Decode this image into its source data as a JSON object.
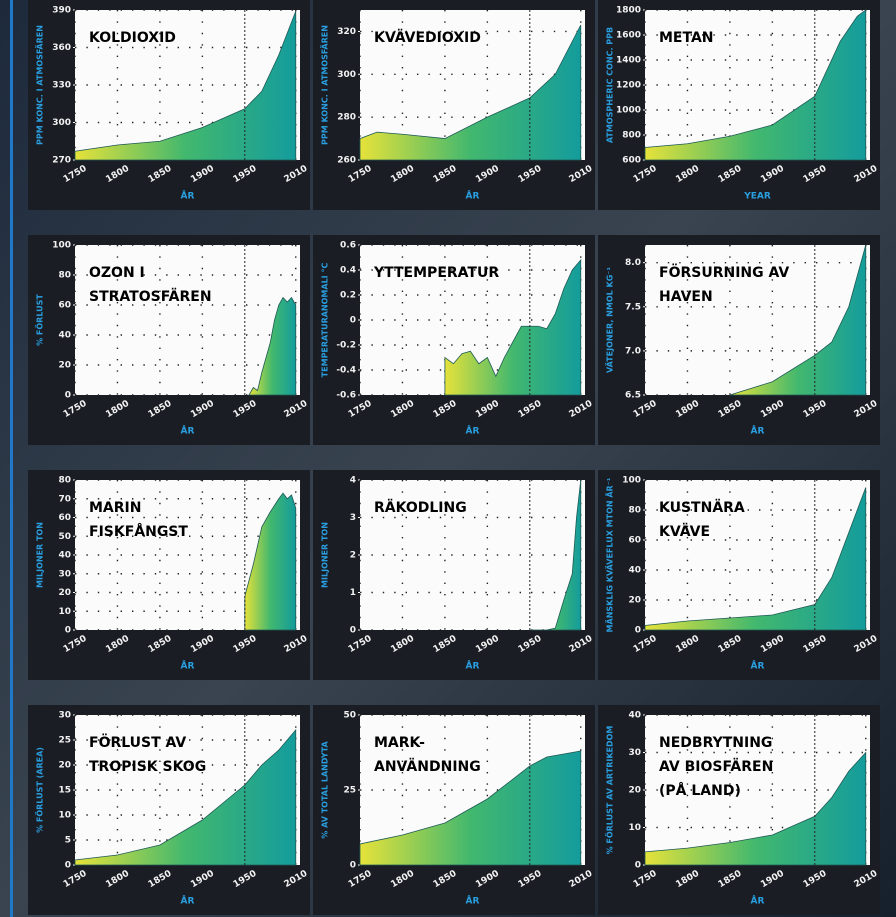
{
  "chart_data": [
    {
      "type": "area",
      "title": [
        "KOLDIOXID"
      ],
      "ylabel": "PPM KONC. I ATMOSFÄREN",
      "xlabel": "ÅR",
      "x": [
        1750,
        1800,
        1850,
        1900,
        1950,
        1970,
        1990,
        2010
      ],
      "values": [
        277,
        282,
        285,
        296,
        311,
        325,
        354,
        389
      ],
      "xlim": [
        1750,
        2015
      ],
      "ylim": [
        270,
        390
      ],
      "xticks": [
        1750,
        1800,
        1850,
        1900,
        1950,
        2010
      ],
      "yticks": [
        270,
        300,
        330,
        360,
        390
      ],
      "grid": true,
      "marker_year": 1950,
      "marker_color": "#e53030",
      "colors": [
        "#e6e23a",
        "#42b86e",
        "#149c9c"
      ]
    },
    {
      "type": "area",
      "title": [
        "KVÄVEDIOXID"
      ],
      "ylabel": "PPM KONC. I ATMOSFÄREN",
      "xlabel": "ÅR",
      "x": [
        1750,
        1770,
        1800,
        1850,
        1900,
        1950,
        1980,
        2010
      ],
      "values": [
        270,
        273,
        272,
        270,
        280,
        289,
        300,
        323
      ],
      "xlim": [
        1750,
        2015
      ],
      "ylim": [
        260,
        330
      ],
      "xticks": [
        1750,
        1800,
        1850,
        1900,
        1950,
        2010
      ],
      "yticks": [
        260,
        280,
        300,
        320
      ],
      "grid": true,
      "marker_year": 1950,
      "marker_color": "#e53030",
      "colors": [
        "#e6e23a",
        "#42b86e",
        "#149c9c"
      ]
    },
    {
      "type": "area",
      "title": [
        "METAN"
      ],
      "ylabel": "ATMOSPHERIC CONC. PPB",
      "xlabel": "YEAR",
      "x": [
        1750,
        1800,
        1850,
        1900,
        1950,
        1980,
        2000,
        2010
      ],
      "values": [
        700,
        730,
        790,
        880,
        1110,
        1550,
        1750,
        1800
      ],
      "xlim": [
        1750,
        2015
      ],
      "ylim": [
        600,
        1800
      ],
      "xticks": [
        1750,
        1800,
        1850,
        1900,
        1950,
        2010
      ],
      "yticks": [
        600,
        800,
        1000,
        1200,
        1400,
        1600,
        1800
      ],
      "grid": true,
      "marker_year": 1950,
      "marker_color": "#e53030",
      "colors": [
        "#e6e23a",
        "#42b86e",
        "#149c9c"
      ]
    },
    {
      "type": "area",
      "title": [
        "OZON I",
        "STRATOSFÄREN"
      ],
      "ylabel": "% FÖRLUST",
      "xlabel": "ÅR",
      "x": [
        1955,
        1960,
        1965,
        1970,
        1975,
        1980,
        1985,
        1990,
        1995,
        2000,
        2005,
        2010
      ],
      "values": [
        0,
        5,
        3,
        15,
        25,
        35,
        50,
        60,
        65,
        62,
        65,
        60
      ],
      "xlim": [
        1750,
        2015
      ],
      "ylim": [
        0,
        100
      ],
      "xticks": [
        1750,
        1800,
        1850,
        1900,
        1950,
        2010
      ],
      "yticks": [
        0,
        20,
        40,
        60,
        80,
        100
      ],
      "grid": true,
      "marker_year": 1950,
      "marker_color": "#e53030",
      "colors": [
        "#e6e23a",
        "#42b86e",
        "#149c9c"
      ]
    },
    {
      "type": "area",
      "title": [
        "YTTEMPERATUR"
      ],
      "ylabel": "TEMPERATURANOMALI °C",
      "xlabel": "ÅR",
      "x": [
        1850,
        1860,
        1870,
        1880,
        1890,
        1900,
        1910,
        1920,
        1940,
        1950,
        1960,
        1970,
        1980,
        1990,
        2000,
        2010
      ],
      "values": [
        -0.3,
        -0.35,
        -0.27,
        -0.25,
        -0.35,
        -0.3,
        -0.45,
        -0.3,
        -0.05,
        -0.05,
        -0.05,
        -0.07,
        0.05,
        0.25,
        0.4,
        0.48
      ],
      "xlim": [
        1750,
        2015
      ],
      "ylim": [
        -0.6,
        0.6
      ],
      "xticks": [
        1750,
        1800,
        1850,
        1900,
        1950,
        2010
      ],
      "yticks": [
        -0.6,
        -0.4,
        -0.2,
        0,
        0.2,
        0.4,
        0.6
      ],
      "grid": true,
      "marker_year": 1950,
      "marker_color": "#e53030",
      "colors": [
        "#e6e23a",
        "#42b86e",
        "#149c9c"
      ]
    },
    {
      "type": "area",
      "title": [
        "FÖRSURNING AV",
        "HAVEN"
      ],
      "ylabel": "VÄTEJONER, NMOL KG⁻¹",
      "xlabel": "ÅR",
      "x": [
        1850,
        1900,
        1950,
        1970,
        1990,
        2010
      ],
      "values": [
        6.5,
        6.65,
        6.95,
        7.1,
        7.5,
        8.2
      ],
      "xlim": [
        1750,
        2015
      ],
      "ylim": [
        6.5,
        8.2
      ],
      "xticks": [
        1750,
        1800,
        1850,
        1900,
        1950,
        2010
      ],
      "yticks": [
        6.5,
        {
          "value": 7,
          "label": "7.0"
        },
        7.5,
        {
          "value": 8,
          "label": "8.0"
        }
      ],
      "grid": true,
      "marker_year": 1950,
      "marker_color": "#e53030",
      "colors": [
        "#e6e23a",
        "#42b86e",
        "#149c9c"
      ]
    },
    {
      "type": "area",
      "title": [
        "MARIN",
        "FISKFÅNGST"
      ],
      "ylabel": "MILJONER TON",
      "xlabel": "ÅR",
      "x": [
        1950,
        1960,
        1970,
        1980,
        1990,
        1995,
        2000,
        2005,
        2010
      ],
      "values": [
        18,
        35,
        55,
        63,
        70,
        73,
        70,
        72,
        65
      ],
      "xlim": [
        1750,
        2015
      ],
      "ylim": [
        0,
        80
      ],
      "xticks": [
        1750,
        1800,
        1850,
        1900,
        1950,
        2010
      ],
      "yticks": [
        0,
        10,
        20,
        30,
        40,
        50,
        60,
        70,
        80
      ],
      "grid": true,
      "marker_year": 1950,
      "marker_color": "#e53030",
      "colors": [
        "#e6e23a",
        "#42b86e",
        "#149c9c"
      ]
    },
    {
      "type": "area",
      "title": [
        "RÄKODLING"
      ],
      "ylabel": "MILJONER TON",
      "xlabel": "ÅR",
      "x": [
        1950,
        1970,
        1980,
        1990,
        2000,
        2005,
        2010
      ],
      "values": [
        0,
        0,
        0.05,
        0.8,
        1.5,
        3,
        4
      ],
      "xlim": [
        1750,
        2015
      ],
      "ylim": [
        0,
        4
      ],
      "xticks": [
        1750,
        1800,
        1850,
        1900,
        1950,
        2010
      ],
      "yticks": [
        0,
        1,
        2,
        3,
        4
      ],
      "grid": true,
      "marker_year": 1950,
      "marker_color": "#e53030",
      "colors": [
        "#e6e23a",
        "#42b86e",
        "#149c9c"
      ]
    },
    {
      "type": "area",
      "title": [
        "KUSTNÄRA",
        "KVÄVE"
      ],
      "ylabel": "MÄNSKLIG KVÄVEFLUX MTON ÅR⁻¹",
      "xlabel": "ÅR",
      "x": [
        1750,
        1800,
        1850,
        1900,
        1950,
        1970,
        1990,
        2010
      ],
      "values": [
        3,
        6,
        8,
        10,
        17,
        35,
        65,
        95
      ],
      "xlim": [
        1750,
        2015
      ],
      "ylim": [
        0,
        100
      ],
      "xticks": [
        1750,
        1800,
        1850,
        1900,
        1950,
        2010
      ],
      "yticks": [
        0,
        20,
        40,
        60,
        80,
        100
      ],
      "grid": true,
      "marker_year": 1950,
      "marker_color": "#e53030",
      "colors": [
        "#e6e23a",
        "#42b86e",
        "#149c9c"
      ]
    },
    {
      "type": "area",
      "title": [
        "FÖRLUST AV",
        "TROPISK SKOG"
      ],
      "ylabel": "% FÖRLUST (AREA)",
      "xlabel": "ÅR",
      "x": [
        1750,
        1800,
        1850,
        1900,
        1950,
        1970,
        1990,
        2010
      ],
      "values": [
        1,
        2,
        4,
        9,
        16,
        20,
        23,
        27
      ],
      "xlim": [
        1750,
        2015
      ],
      "ylim": [
        0,
        30
      ],
      "xticks": [
        1750,
        1800,
        1850,
        1900,
        1950,
        2010
      ],
      "yticks": [
        0,
        5,
        10,
        15,
        20,
        25,
        30
      ],
      "grid": true,
      "marker_year": 1950,
      "marker_color": "#e53030",
      "colors": [
        "#e6e23a",
        "#42b86e",
        "#149c9c"
      ]
    },
    {
      "type": "area",
      "title": [
        "MARK-",
        "ANVÄNDNING"
      ],
      "ylabel": "% AV TOTAL LANDYTA",
      "xlabel": "ÅR",
      "x": [
        1750,
        1800,
        1850,
        1900,
        1950,
        1970,
        1990,
        2010
      ],
      "values": [
        7,
        10,
        14,
        22,
        33,
        36,
        37,
        38
      ],
      "xlim": [
        1750,
        2015
      ],
      "ylim": [
        0,
        50
      ],
      "xticks": [
        1750,
        1800,
        1850,
        1900,
        1950,
        2010
      ],
      "yticks": [
        0,
        25,
        50
      ],
      "grid": true,
      "marker_year": 1950,
      "marker_color": "#e53030",
      "colors": [
        "#e6e23a",
        "#42b86e",
        "#149c9c"
      ]
    },
    {
      "type": "area",
      "title": [
        "NEDBRYTNING",
        "AV BIOSFÄREN",
        "(PÅ LAND)"
      ],
      "ylabel": "% FÖRLUST AV ARTRIKEDOM",
      "xlabel": "ÅR",
      "x": [
        1750,
        1800,
        1850,
        1900,
        1950,
        1970,
        1990,
        2010
      ],
      "values": [
        3.5,
        4.5,
        6,
        8,
        13,
        18,
        25,
        30
      ],
      "xlim": [
        1750,
        2015
      ],
      "ylim": [
        0,
        40
      ],
      "xticks": [
        1750,
        1800,
        1850,
        1900,
        1950,
        2010
      ],
      "yticks": [
        0,
        10,
        20,
        30,
        40
      ],
      "grid": true,
      "marker_year": 1950,
      "marker_color": "#e53030",
      "colors": [
        "#e6e23a",
        "#42b86e",
        "#149c9c"
      ]
    }
  ]
}
